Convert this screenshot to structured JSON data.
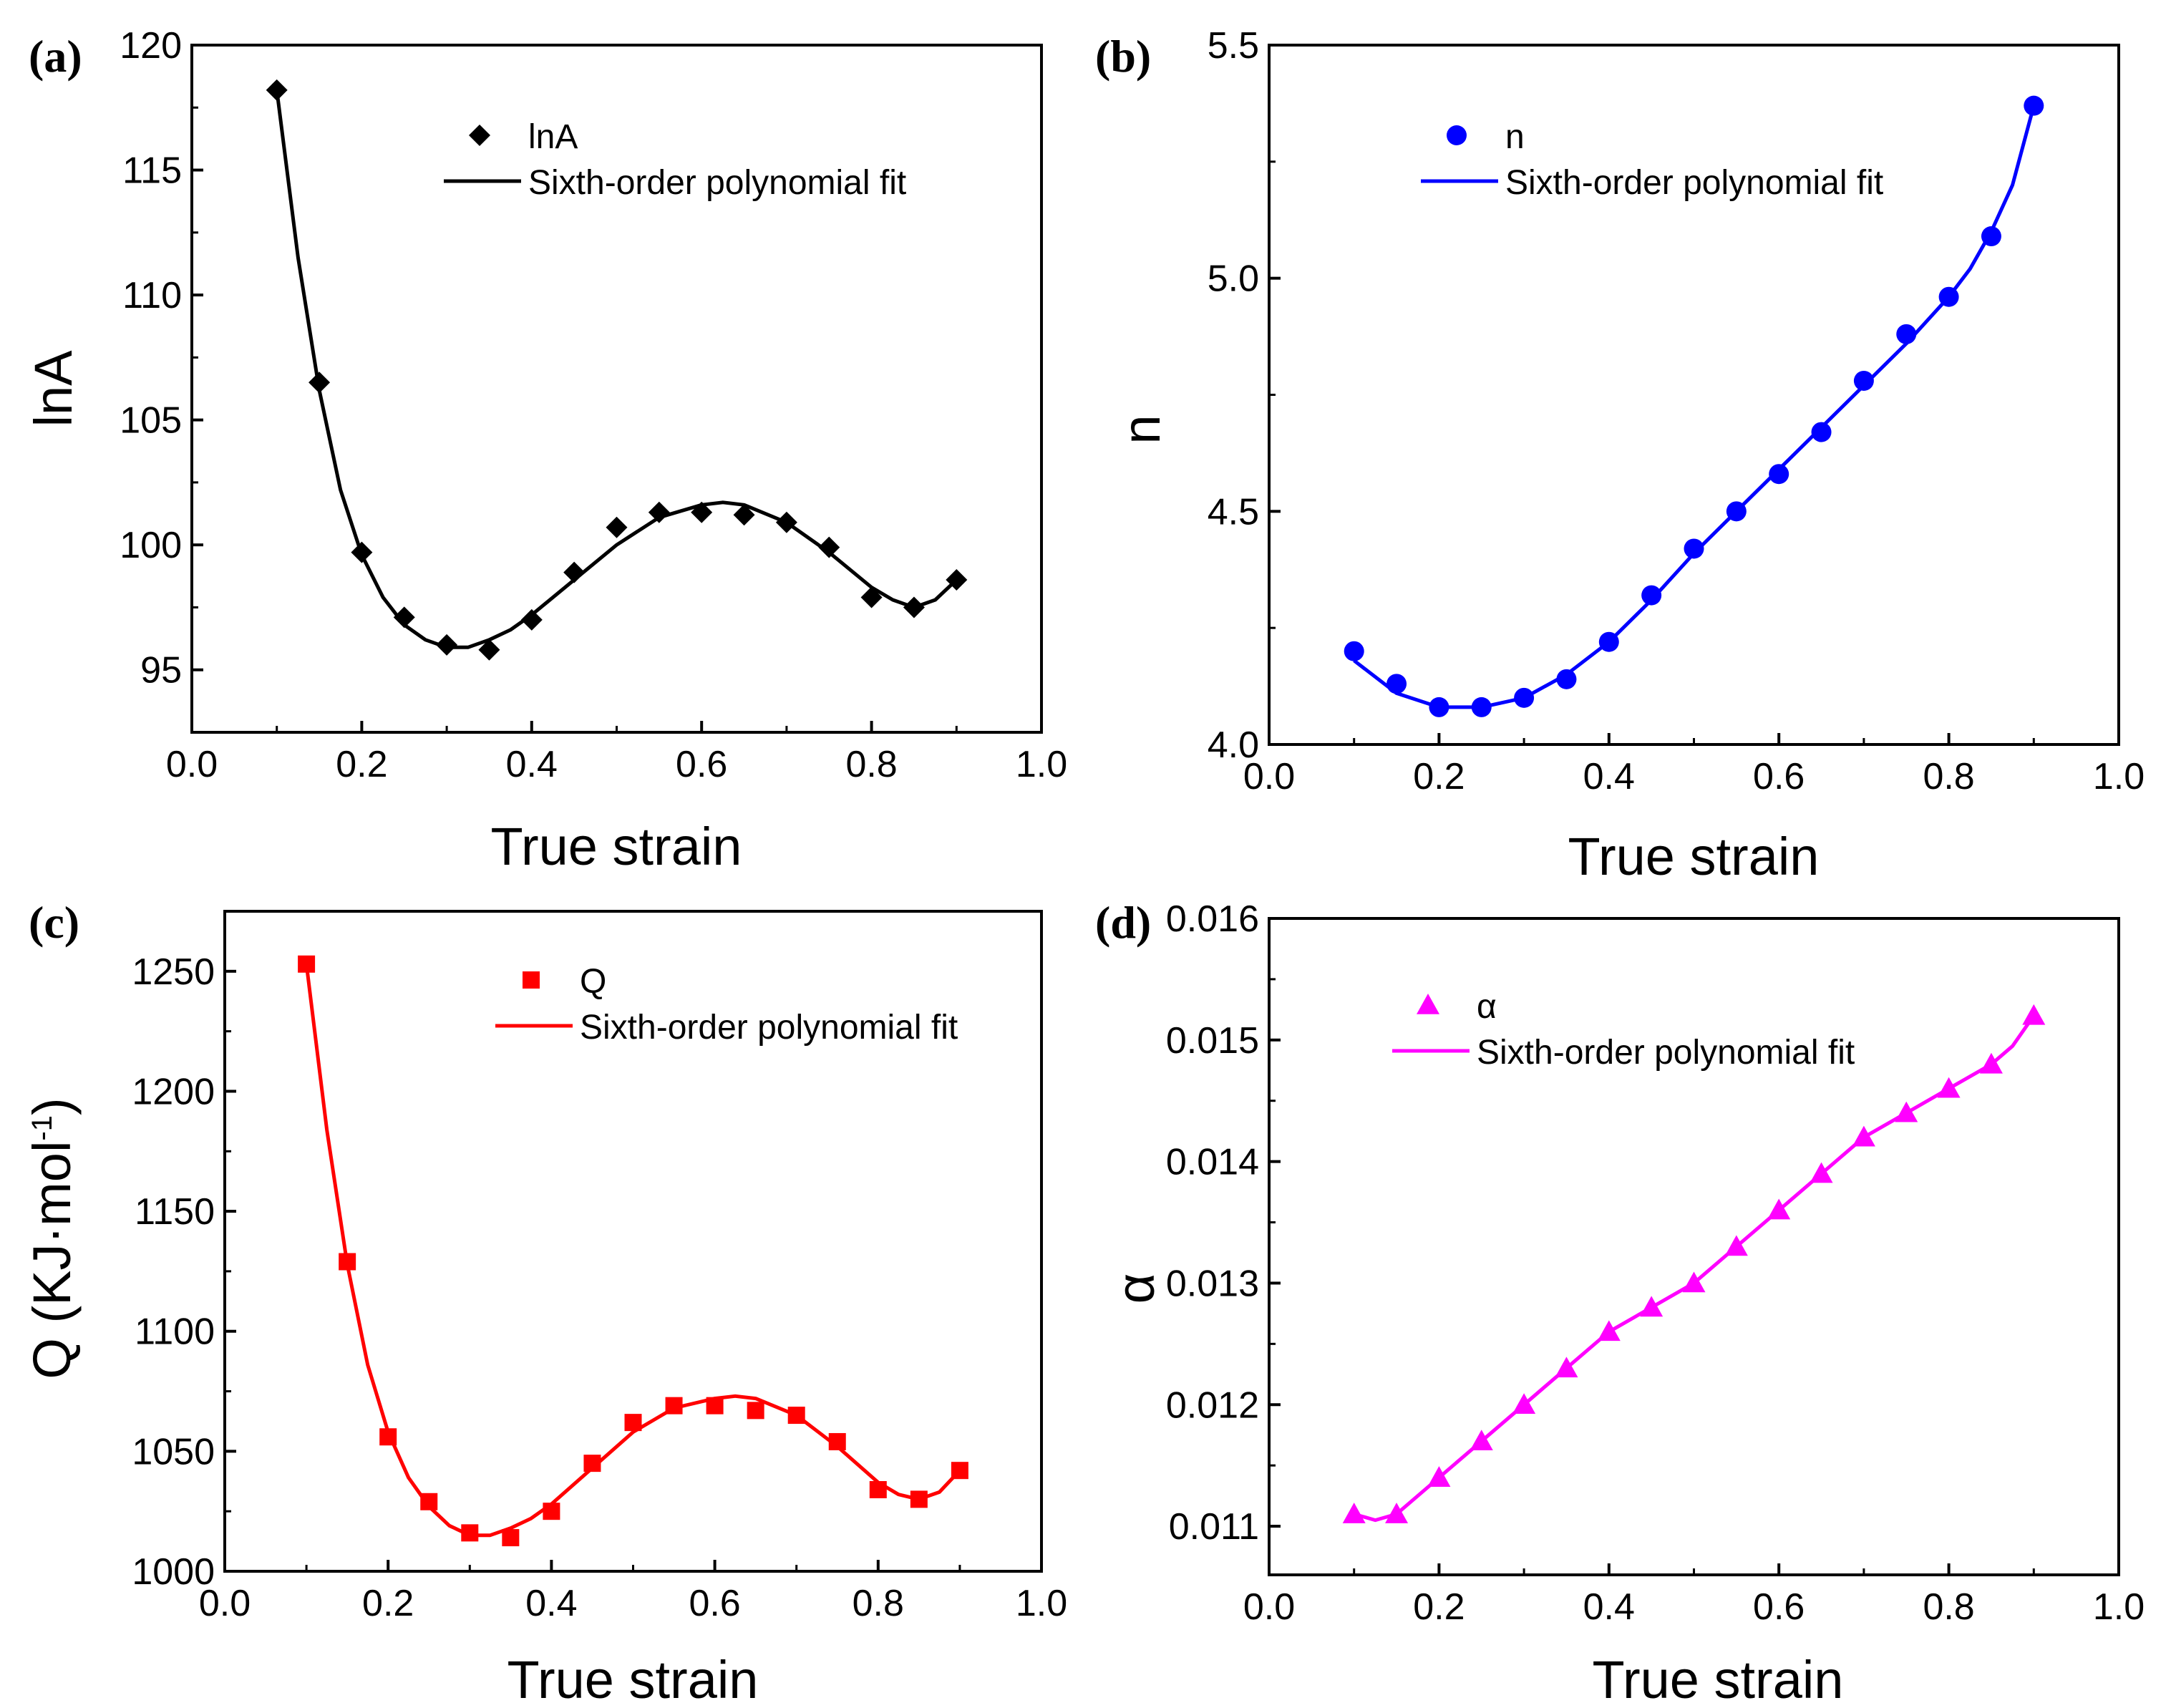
{
  "chart_data": [
    {
      "panel": "(a)",
      "type": "scatter",
      "color": "#000000",
      "marker": "diamond",
      "xlabel": "True strain",
      "ylabel": "lnA",
      "xlim": [
        0.0,
        1.0
      ],
      "ylim": [
        92.5,
        120
      ],
      "xticks": [
        "0.0",
        "0.2",
        "0.4",
        "0.6",
        "0.8",
        "1.0"
      ],
      "yticks": [
        "95",
        "100",
        "105",
        "110",
        "115",
        "120"
      ],
      "legend_position": "top-right",
      "series": [
        {
          "name": "lnA",
          "kind": "points",
          "x": [
            0.1,
            0.15,
            0.2,
            0.25,
            0.3,
            0.35,
            0.4,
            0.45,
            0.5,
            0.55,
            0.6,
            0.65,
            0.7,
            0.75,
            0.8,
            0.85,
            0.9
          ],
          "y": [
            118.2,
            106.5,
            99.7,
            97.1,
            96.0,
            95.8,
            97.0,
            98.9,
            100.7,
            101.3,
            101.3,
            101.2,
            100.9,
            99.9,
            97.9,
            97.5,
            98.6
          ]
        },
        {
          "name": "Sixth-order polynomial fit",
          "kind": "line",
          "x": [
            0.1,
            0.125,
            0.15,
            0.175,
            0.2,
            0.225,
            0.25,
            0.275,
            0.3,
            0.325,
            0.35,
            0.375,
            0.4,
            0.45,
            0.5,
            0.55,
            0.6,
            0.625,
            0.65,
            0.7,
            0.75,
            0.8,
            0.825,
            0.85,
            0.875,
            0.9
          ],
          "y": [
            118.2,
            111.5,
            106.2,
            102.2,
            99.6,
            97.9,
            96.8,
            96.2,
            95.9,
            95.9,
            96.2,
            96.6,
            97.2,
            98.6,
            100.0,
            101.1,
            101.6,
            101.7,
            101.6,
            100.9,
            99.7,
            98.3,
            97.8,
            97.5,
            97.8,
            98.6
          ]
        }
      ]
    },
    {
      "panel": "(b)",
      "type": "scatter",
      "color": "#0000ff",
      "marker": "circle",
      "xlabel": "True strain",
      "ylabel": "n",
      "xlim": [
        0.0,
        1.0
      ],
      "ylim": [
        4.0,
        5.5
      ],
      "xticks": [
        "0.0",
        "0.2",
        "0.4",
        "0.6",
        "0.8",
        "1.0"
      ],
      "yticks": [
        "4.0",
        "4.5",
        "5.0",
        "5.5"
      ],
      "legend_position": "top-right",
      "series": [
        {
          "name": "n",
          "kind": "points",
          "x": [
            0.1,
            0.15,
            0.2,
            0.25,
            0.3,
            0.35,
            0.4,
            0.45,
            0.5,
            0.55,
            0.6,
            0.65,
            0.7,
            0.75,
            0.8,
            0.85,
            0.9
          ],
          "y": [
            4.2,
            4.13,
            4.08,
            4.08,
            4.1,
            4.14,
            4.22,
            4.32,
            4.42,
            4.5,
            4.58,
            4.67,
            4.78,
            4.88,
            4.96,
            5.09,
            5.37
          ]
        },
        {
          "name": "Sixth-order polynomial fit",
          "kind": "line",
          "x": [
            0.1,
            0.15,
            0.2,
            0.25,
            0.3,
            0.35,
            0.4,
            0.45,
            0.5,
            0.55,
            0.6,
            0.65,
            0.7,
            0.75,
            0.8,
            0.825,
            0.85,
            0.875,
            0.9
          ],
          "y": [
            4.18,
            4.11,
            4.08,
            4.08,
            4.1,
            4.15,
            4.22,
            4.31,
            4.41,
            4.5,
            4.59,
            4.68,
            4.77,
            4.86,
            4.96,
            5.02,
            5.1,
            5.2,
            5.37
          ]
        }
      ]
    },
    {
      "panel": "(c)",
      "type": "scatter",
      "color": "#ff0000",
      "marker": "square",
      "xlabel": "True strain",
      "ylabel": "Q (KJ·mol",
      "ylabel_sup": "-1",
      "ylabel_end": ")",
      "xlim": [
        0.0,
        1.0
      ],
      "ylim": [
        1000,
        1275
      ],
      "xticks": [
        "0.0",
        "0.2",
        "0.4",
        "0.6",
        "0.8",
        "1.0"
      ],
      "yticks": [
        "1000",
        "1050",
        "1100",
        "1150",
        "1200",
        "1250"
      ],
      "legend_position": "top-right",
      "series": [
        {
          "name": "Q",
          "kind": "points",
          "x": [
            0.1,
            0.15,
            0.2,
            0.25,
            0.3,
            0.35,
            0.4,
            0.45,
            0.5,
            0.55,
            0.6,
            0.65,
            0.7,
            0.75,
            0.8,
            0.85,
            0.9
          ],
          "y": [
            1253,
            1129,
            1056,
            1029,
            1016,
            1014,
            1025,
            1045,
            1062,
            1069,
            1069,
            1067,
            1065,
            1054,
            1034,
            1030,
            1042
          ]
        },
        {
          "name": "Sixth-order polynomial fit",
          "kind": "line",
          "x": [
            0.1,
            0.125,
            0.15,
            0.175,
            0.2,
            0.225,
            0.25,
            0.275,
            0.3,
            0.325,
            0.35,
            0.375,
            0.4,
            0.45,
            0.5,
            0.55,
            0.6,
            0.625,
            0.65,
            0.7,
            0.75,
            0.8,
            0.825,
            0.85,
            0.875,
            0.9
          ],
          "y": [
            1253,
            1184,
            1128,
            1086,
            1058,
            1039,
            1027,
            1019,
            1015,
            1015,
            1018,
            1022,
            1028,
            1043,
            1058,
            1068,
            1072,
            1073,
            1072,
            1065,
            1052,
            1037,
            1032,
            1030,
            1033,
            1042
          ]
        }
      ]
    },
    {
      "panel": "(d)",
      "type": "scatter",
      "color": "#ff00ff",
      "marker": "triangle",
      "xlabel": "True strain",
      "ylabel": "α",
      "xlim": [
        0.0,
        1.0
      ],
      "ylim": [
        0.0106,
        0.016
      ],
      "xticks": [
        "0.0",
        "0.2",
        "0.4",
        "0.6",
        "0.8",
        "1.0"
      ],
      "yticks": [
        "0.011",
        "0.012",
        "0.013",
        "0.014",
        "0.015",
        "0.016"
      ],
      "legend_position": "top-right",
      "series": [
        {
          "name": "α",
          "kind": "points",
          "x": [
            0.1,
            0.15,
            0.2,
            0.25,
            0.3,
            0.35,
            0.4,
            0.45,
            0.5,
            0.55,
            0.6,
            0.65,
            0.7,
            0.75,
            0.8,
            0.85,
            0.9
          ],
          "y": [
            0.0111,
            0.0111,
            0.0114,
            0.0117,
            0.012,
            0.0123,
            0.0126,
            0.0128,
            0.013,
            0.0133,
            0.0136,
            0.0139,
            0.0142,
            0.0144,
            0.0146,
            0.0148,
            0.0152
          ]
        },
        {
          "name": "Sixth-order polynomial fit",
          "kind": "line",
          "x": [
            0.1,
            0.125,
            0.15,
            0.175,
            0.2,
            0.25,
            0.3,
            0.35,
            0.4,
            0.45,
            0.5,
            0.55,
            0.6,
            0.65,
            0.7,
            0.75,
            0.8,
            0.85,
            0.875,
            0.9
          ],
          "y": [
            0.0111,
            0.01105,
            0.0111,
            0.01125,
            0.0114,
            0.0117,
            0.012,
            0.0123,
            0.0126,
            0.0128,
            0.013,
            0.0133,
            0.0136,
            0.0139,
            0.0142,
            0.0144,
            0.0146,
            0.0148,
            0.01495,
            0.0152
          ]
        }
      ]
    }
  ]
}
